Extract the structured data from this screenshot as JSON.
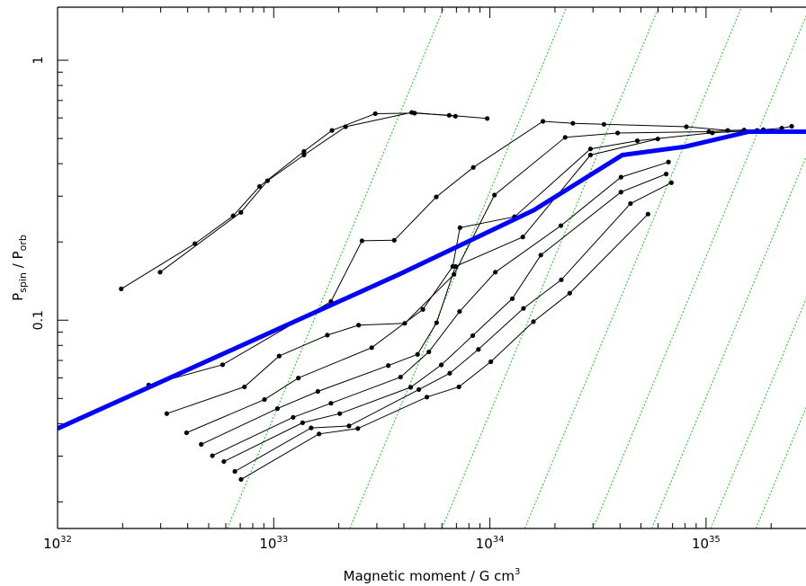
{
  "chart_data": {
    "type": "line",
    "title": "",
    "xlabel": "Magnetic moment / G cm",
    "xlabel_sup": "3",
    "ylabel_main_1": "P",
    "ylabel_sub_1": "spin",
    "ylabel_sep": " / ",
    "ylabel_main_2": "P",
    "ylabel_sub_2": "orb",
    "x_scale": "log",
    "y_scale": "log",
    "xlim": [
      1e+32,
      2.9e+35
    ],
    "ylim": [
      0.0158,
      1.6
    ],
    "x_ticks": [
      {
        "value": 1e+32,
        "base": "10",
        "exp": "32"
      },
      {
        "value": 1e+33,
        "base": "10",
        "exp": "33"
      },
      {
        "value": 1e+34,
        "base": "10",
        "exp": "34"
      },
      {
        "value": 1e+35,
        "base": "10",
        "exp": "35"
      }
    ],
    "y_ticks": [
      {
        "value": 1,
        "label": "1"
      },
      {
        "value": 0.1,
        "label": "0.1"
      }
    ],
    "grid": false,
    "legend": "none",
    "colors": {
      "data": "#000000",
      "equilibrium": "#0000ff",
      "reference": "#22cc22"
    },
    "series": [
      {
        "values": [
          [
            1.97e+32,
            0.132
          ],
          [
            4.32e+32,
            0.197
          ],
          [
            6.49e+32,
            0.252
          ],
          [
            8.6e+32,
            0.327
          ],
          [
            1.38e+33,
            0.446
          ],
          [
            1.86e+33,
            0.537
          ],
          [
            2.95e+33,
            0.623
          ],
          [
            4.48e+33,
            0.626
          ],
          [
            6.48e+33,
            0.614
          ],
          [
            9.72e+33,
            0.597
          ]
        ]
      },
      {
        "values": [
          [
            2.98e+32,
            0.153
          ],
          [
            7.05e+32,
            0.26
          ],
          [
            9.36e+32,
            0.344
          ],
          [
            1.38e+33,
            0.432
          ],
          [
            2.15e+33,
            0.555
          ],
          [
            4.35e+33,
            0.63
          ],
          [
            6.93e+33,
            0.609
          ]
        ]
      },
      {
        "values": [
          [
            2.64e+32,
            0.0563
          ],
          [
            5.8e+32,
            0.0674
          ],
          [
            1.84e+33,
            0.118
          ],
          [
            2.56e+33,
            0.202
          ],
          [
            3.61e+33,
            0.203
          ],
          [
            5.65e+33,
            0.298
          ],
          [
            8.38e+33,
            0.387
          ],
          [
            1.76e+34,
            0.582
          ],
          [
            2.42e+34,
            0.572
          ],
          [
            3.37e+34,
            0.567
          ],
          [
            8.11e+34,
            0.555
          ],
          [
            1.26e+35,
            0.537
          ],
          [
            1.84e+35,
            0.541
          ],
          [
            2.24e+35,
            0.548
          ],
          [
            2.49e+35,
            0.557
          ]
        ]
      },
      {
        "values": [
          [
            3.2e+32,
            0.0437
          ],
          [
            7.32e+32,
            0.0554
          ],
          [
            1.06e+33,
            0.0728
          ],
          [
            1.77e+33,
            0.0876
          ],
          [
            2.47e+33,
            0.0957
          ],
          [
            4.04e+33,
            0.0973
          ],
          [
            6.82e+33,
            0.15
          ],
          [
            1.05e+34,
            0.303
          ],
          [
            2.23e+34,
            0.505
          ],
          [
            3.9e+34,
            0.525
          ],
          [
            1.03e+35,
            0.531
          ],
          [
            1.5e+35,
            0.539
          ]
        ]
      },
      {
        "values": [
          [
            3.95e+32,
            0.0369
          ],
          [
            9.06e+32,
            0.0495
          ],
          [
            1.3e+33,
            0.0599
          ],
          [
            2.84e+33,
            0.0784
          ],
          [
            4.9e+33,
            0.11
          ],
          [
            6.73e+33,
            0.161
          ],
          [
            7.27e+33,
            0.227
          ],
          [
            1.3e+34,
            0.25
          ],
          [
            2.92e+34,
            0.456
          ],
          [
            4.81e+34,
            0.49
          ],
          [
            1.07e+35,
            0.526
          ],
          [
            1.72e+35,
            0.537
          ]
        ]
      },
      {
        "values": [
          [
            4.62e+32,
            0.0333
          ],
          [
            1.04e+33,
            0.0457
          ],
          [
            1.6e+33,
            0.0532
          ],
          [
            3.39e+33,
            0.0669
          ],
          [
            4.63e+33,
            0.0739
          ],
          [
            5.67e+33,
            0.0978
          ],
          [
            6.93e+33,
            0.161
          ],
          [
            1.42e+34,
            0.209
          ],
          [
            2.92e+34,
            0.432
          ],
          [
            5.98e+34,
            0.498
          ]
        ]
      },
      {
        "values": [
          [
            5.2e+32,
            0.0301
          ],
          [
            1.23e+33,
            0.0423
          ],
          [
            1.84e+33,
            0.0479
          ],
          [
            3.86e+33,
            0.0604
          ],
          [
            5.22e+33,
            0.0755
          ],
          [
            7.24e+33,
            0.108
          ],
          [
            1.06e+34,
            0.153
          ],
          [
            2.13e+34,
            0.231
          ],
          [
            4.04e+34,
            0.355
          ],
          [
            6.7e+34,
            0.406
          ]
        ]
      },
      {
        "values": [
          [
            5.88e+32,
            0.0286
          ],
          [
            1.36e+33,
            0.0403
          ],
          [
            2.02e+33,
            0.0437
          ],
          [
            4.3e+33,
            0.0552
          ],
          [
            5.96e+33,
            0.0673
          ],
          [
            8.33e+33,
            0.0872
          ],
          [
            1.27e+34,
            0.121
          ],
          [
            1.72e+34,
            0.178
          ],
          [
            4.04e+34,
            0.311
          ],
          [
            6.54e+34,
            0.365
          ]
        ]
      },
      {
        "values": [
          [
            6.61e+32,
            0.0262
          ],
          [
            1.49e+33,
            0.0385
          ],
          [
            2.23e+33,
            0.0392
          ],
          [
            4.69e+33,
            0.0541
          ],
          [
            6.52e+33,
            0.0625
          ],
          [
            8.85e+33,
            0.0772
          ],
          [
            1.43e+34,
            0.111
          ],
          [
            2.14e+34,
            0.143
          ],
          [
            4.47e+34,
            0.281
          ],
          [
            6.91e+34,
            0.338
          ]
        ]
      },
      {
        "values": [
          [
            7.06e+32,
            0.0244
          ],
          [
            1.62e+33,
            0.0365
          ],
          [
            2.45e+33,
            0.0383
          ],
          [
            5.11e+33,
            0.0506
          ],
          [
            7.19e+33,
            0.0554
          ],
          [
            1.01e+34,
            0.0692
          ],
          [
            1.59e+34,
            0.0987
          ],
          [
            2.34e+34,
            0.127
          ],
          [
            5.39e+34,
            0.256
          ]
        ]
      }
    ],
    "equilibrium_line": [
      [
        1e+32,
        0.0383
      ],
      [
        3.8e+33,
        0.15
      ],
      [
        1.6e+34,
        0.265
      ],
      [
        4.1e+34,
        0.432
      ],
      [
        8e+34,
        0.465
      ],
      [
        1.58e+35,
        0.531
      ],
      [
        2.9e+35,
        0.531
      ]
    ],
    "reference_lines_x_at_ymin": [
      6.1e+32,
      2.25e+33,
      6e+33,
      1.45e+34,
      3e+34,
      5.6e+34,
      1.05e+35,
      1.7e+35
    ],
    "reference_line_slope": 0.5
  }
}
